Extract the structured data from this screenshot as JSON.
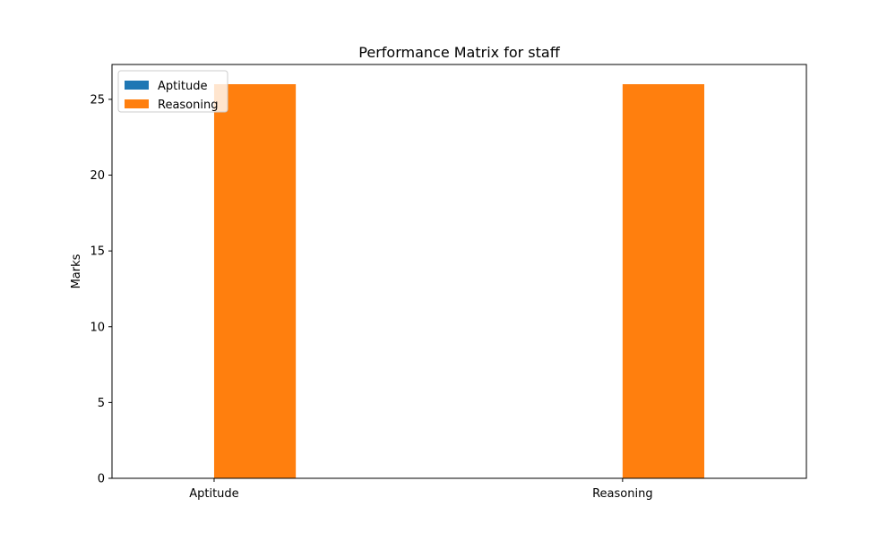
{
  "chart_data": {
    "type": "bar",
    "title": "Performance Matrix for staff",
    "xlabel": "",
    "ylabel": "Marks",
    "categories": [
      "Aptitude",
      "Reasoning"
    ],
    "series": [
      {
        "name": "Aptitude",
        "color": "#1f77b4",
        "values": [
          0,
          0
        ]
      },
      {
        "name": "Reasoning",
        "color": "#ff7f0e",
        "values": [
          26,
          26
        ]
      }
    ],
    "ylim": [
      0,
      27.3
    ],
    "yticks": [
      0,
      5,
      10,
      15,
      20,
      25
    ],
    "grid": false,
    "legend_position": "top-left"
  }
}
